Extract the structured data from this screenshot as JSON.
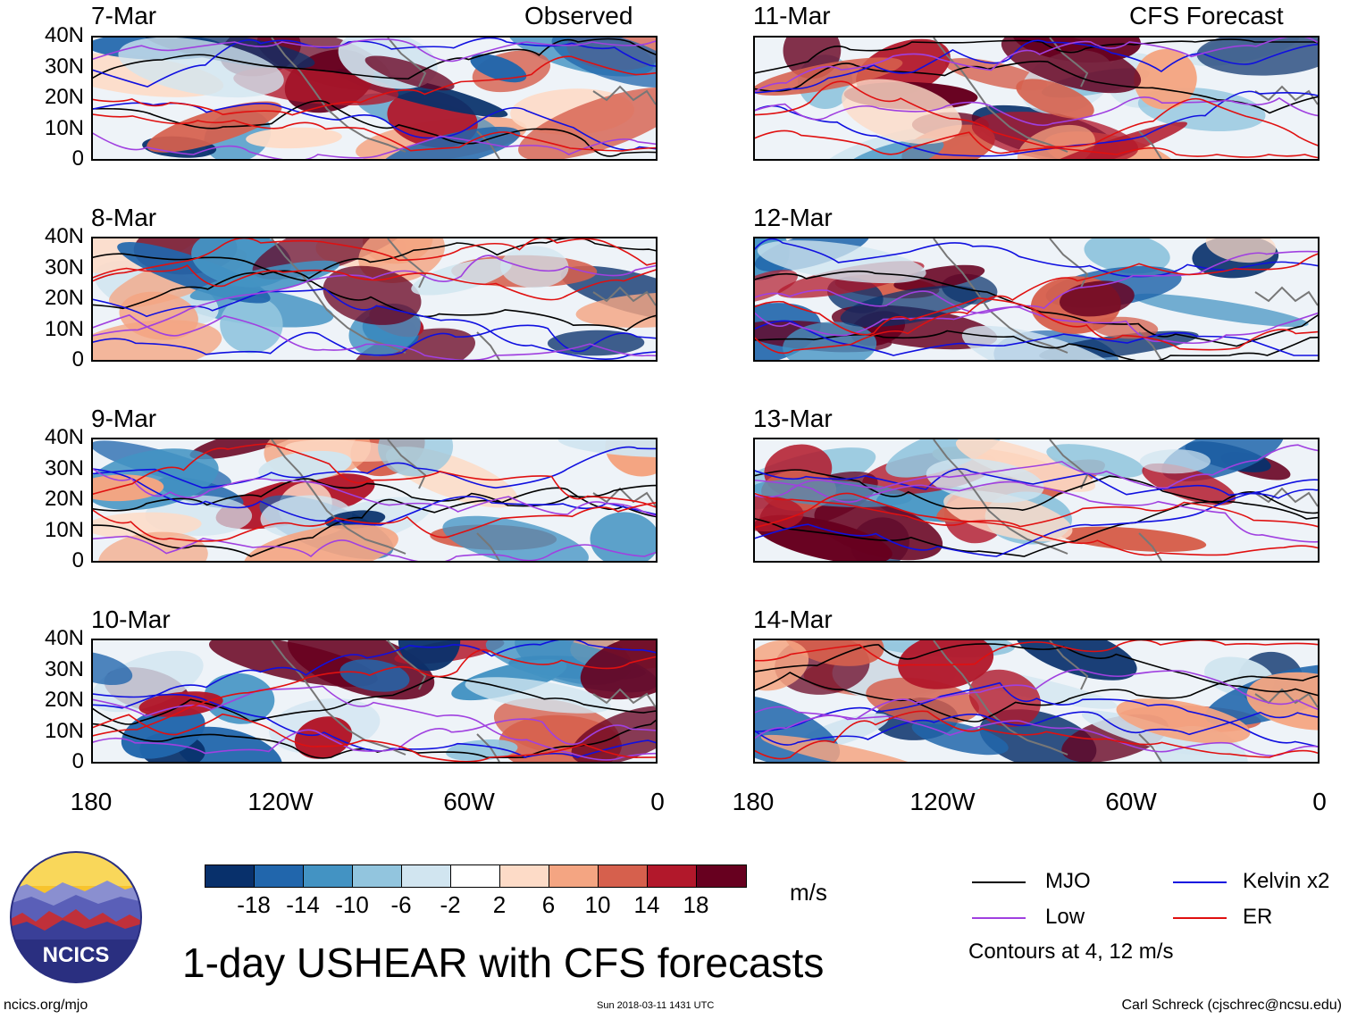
{
  "header": {
    "left_label": "Observed",
    "right_label": "CFS Forecast"
  },
  "panels_left": [
    {
      "date": "7-Mar"
    },
    {
      "date": "8-Mar"
    },
    {
      "date": "9-Mar"
    },
    {
      "date": "10-Mar"
    }
  ],
  "panels_right": [
    {
      "date": "11-Mar"
    },
    {
      "date": "12-Mar"
    },
    {
      "date": "13-Mar"
    },
    {
      "date": "14-Mar"
    }
  ],
  "lat_labels": [
    "40N",
    "30N",
    "20N",
    "10N",
    "0"
  ],
  "lon_labels": [
    "180",
    "120W",
    "60W",
    "0"
  ],
  "colorbar": {
    "colors": [
      "#08306b",
      "#2166ac",
      "#4393c3",
      "#92c5de",
      "#d1e5f0",
      "#ffffff",
      "#fddbc7",
      "#f4a582",
      "#d6604d",
      "#b2182b",
      "#67001f"
    ],
    "labels": [
      "-18",
      "-14",
      "-10",
      "-6",
      "-2",
      "2",
      "6",
      "10",
      "14",
      "18"
    ],
    "unit": "m/s"
  },
  "legend": {
    "items": [
      {
        "label": "MJO",
        "color": "#000000"
      },
      {
        "label": "Kelvin x2",
        "color": "#1010e0"
      },
      {
        "label": "Low",
        "color": "#a040e0"
      },
      {
        "label": "ER",
        "color": "#e01010"
      }
    ],
    "note": "Contours at 4, 12 m/s"
  },
  "logo": {
    "text": "NCICS"
  },
  "title": "1-day USHEAR with CFS forecasts",
  "footer": {
    "url": "ncics.org/mjo",
    "timestamp": "Sun 2018-03-11 1431 UTC",
    "author": "Carl Schreck (cjschrec@ncsu.edu)"
  }
}
